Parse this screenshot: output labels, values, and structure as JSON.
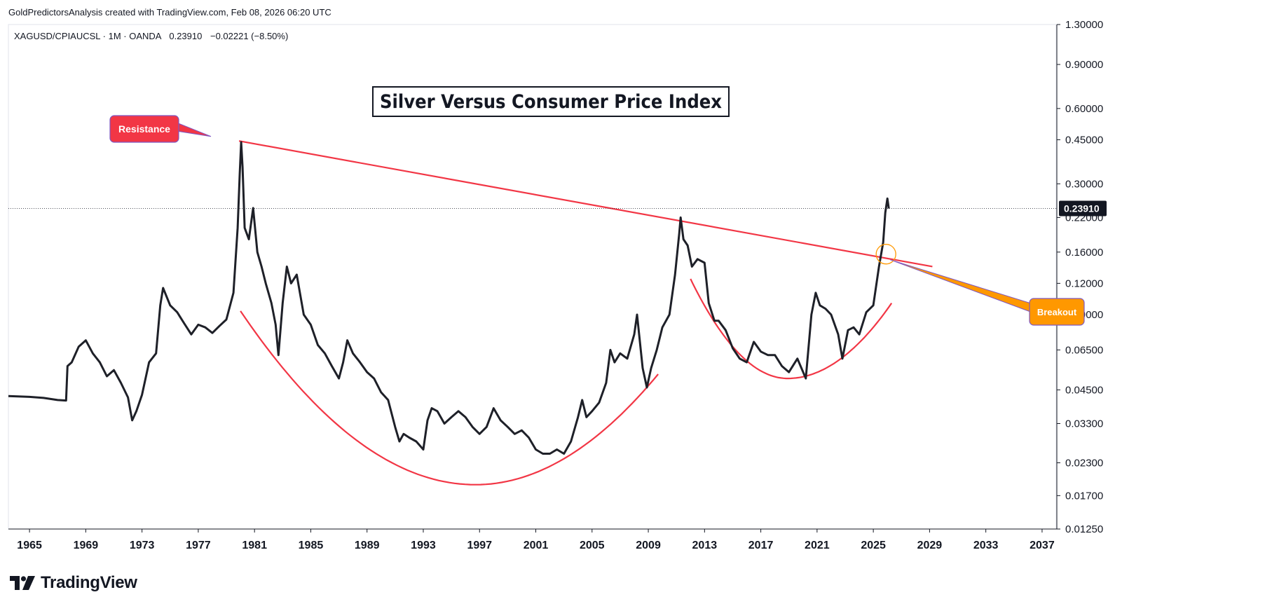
{
  "credit": "GoldPredictorsAnalysis created with TradingView.com, Feb 08, 2026 06:20 UTC",
  "logo": {
    "text": "TradingView",
    "icon": "tradingview-logo-icon"
  },
  "symbol_info": {
    "text": "XAGUSD/CPIAUCSL · 1M · OANDA",
    "last": "0.23910",
    "change": "−0.02221 (−8.50%)"
  },
  "colors": {
    "price": "#1e2028",
    "trend": "#f23645",
    "resistance": "#f23645",
    "breakout": "#ff9800",
    "axis": "#131722"
  },
  "chart_data": {
    "type": "line",
    "title": "Silver Versus Consumer Price Index",
    "y_scale": "log",
    "ylim": [
      0.0125,
      1.3
    ],
    "xlim": [
      1963.5,
      2038.0
    ],
    "y_ticks": [
      "1.30000",
      "0.90000",
      "0.60000",
      "0.45000",
      "0.30000",
      "0.22000",
      "0.16000",
      "0.12000",
      "0.09000",
      "0.06500",
      "0.04500",
      "0.03300",
      "0.02300",
      "0.01700",
      "0.01250"
    ],
    "x_ticks": [
      "1965",
      "1969",
      "1973",
      "1977",
      "1981",
      "1985",
      "1989",
      "1993",
      "1997",
      "2001",
      "2005",
      "2009",
      "2013",
      "2017",
      "2021",
      "2025",
      "2029",
      "2033",
      "2037"
    ],
    "last_value": "0.23910",
    "series": [
      {
        "values": [
          [
            1963.5,
            0.0425
          ],
          [
            1965,
            0.0422
          ],
          [
            1966,
            0.0418
          ],
          [
            1967,
            0.041
          ],
          [
            1967.6,
            0.0408
          ],
          [
            1967.7,
            0.056
          ],
          [
            1968,
            0.058
          ],
          [
            1968.5,
            0.067
          ],
          [
            1969,
            0.071
          ],
          [
            1969.5,
            0.063
          ],
          [
            1970,
            0.058
          ],
          [
            1970.5,
            0.051
          ],
          [
            1971,
            0.054
          ],
          [
            1971.5,
            0.048
          ],
          [
            1972,
            0.042
          ],
          [
            1972.3,
            0.034
          ],
          [
            1972.6,
            0.037
          ],
          [
            1973,
            0.043
          ],
          [
            1973.5,
            0.058
          ],
          [
            1974,
            0.063
          ],
          [
            1974.3,
            0.098
          ],
          [
            1974.5,
            0.115
          ],
          [
            1975,
            0.098
          ],
          [
            1975.5,
            0.092
          ],
          [
            1976,
            0.083
          ],
          [
            1976.5,
            0.075
          ],
          [
            1977,
            0.082
          ],
          [
            1977.5,
            0.08
          ],
          [
            1978,
            0.076
          ],
          [
            1978.5,
            0.081
          ],
          [
            1979,
            0.086
          ],
          [
            1979.5,
            0.11
          ],
          [
            1979.8,
            0.2
          ],
          [
            1979.95,
            0.33
          ],
          [
            1980.05,
            0.44
          ],
          [
            1980.15,
            0.35
          ],
          [
            1980.3,
            0.2
          ],
          [
            1980.6,
            0.18
          ],
          [
            1980.9,
            0.24
          ],
          [
            1981.2,
            0.16
          ],
          [
            1981.5,
            0.14
          ],
          [
            1981.8,
            0.12
          ],
          [
            1982.2,
            0.1
          ],
          [
            1982.5,
            0.082
          ],
          [
            1982.7,
            0.062
          ],
          [
            1983,
            0.1
          ],
          [
            1983.3,
            0.14
          ],
          [
            1983.6,
            0.12
          ],
          [
            1984,
            0.13
          ],
          [
            1984.5,
            0.09
          ],
          [
            1985,
            0.082
          ],
          [
            1985.5,
            0.068
          ],
          [
            1986,
            0.063
          ],
          [
            1986.5,
            0.056
          ],
          [
            1987,
            0.05
          ],
          [
            1987.3,
            0.058
          ],
          [
            1987.6,
            0.071
          ],
          [
            1988,
            0.063
          ],
          [
            1988.5,
            0.058
          ],
          [
            1989,
            0.053
          ],
          [
            1989.5,
            0.05
          ],
          [
            1990,
            0.044
          ],
          [
            1990.5,
            0.041
          ],
          [
            1991,
            0.032
          ],
          [
            1991.3,
            0.028
          ],
          [
            1991.6,
            0.03
          ],
          [
            1992,
            0.029
          ],
          [
            1992.5,
            0.028
          ],
          [
            1993,
            0.026
          ],
          [
            1993.3,
            0.034
          ],
          [
            1993.6,
            0.038
          ],
          [
            1994,
            0.037
          ],
          [
            1994.5,
            0.033
          ],
          [
            1995,
            0.035
          ],
          [
            1995.5,
            0.037
          ],
          [
            1996,
            0.035
          ],
          [
            1996.5,
            0.032
          ],
          [
            1997,
            0.03
          ],
          [
            1997.5,
            0.032
          ],
          [
            1998,
            0.038
          ],
          [
            1998.5,
            0.034
          ],
          [
            1999,
            0.032
          ],
          [
            1999.5,
            0.03
          ],
          [
            2000,
            0.031
          ],
          [
            2000.5,
            0.029
          ],
          [
            2001,
            0.026
          ],
          [
            2001.5,
            0.025
          ],
          [
            2002,
            0.025
          ],
          [
            2002.5,
            0.026
          ],
          [
            2003,
            0.025
          ],
          [
            2003.5,
            0.028
          ],
          [
            2004,
            0.035
          ],
          [
            2004.3,
            0.041
          ],
          [
            2004.6,
            0.035
          ],
          [
            2005,
            0.037
          ],
          [
            2005.5,
            0.04
          ],
          [
            2006,
            0.048
          ],
          [
            2006.3,
            0.065
          ],
          [
            2006.6,
            0.058
          ],
          [
            2007,
            0.063
          ],
          [
            2007.5,
            0.06
          ],
          [
            2008,
            0.075
          ],
          [
            2008.2,
            0.09
          ],
          [
            2008.6,
            0.055
          ],
          [
            2008.9,
            0.046
          ],
          [
            2009.2,
            0.055
          ],
          [
            2009.6,
            0.065
          ],
          [
            2010,
            0.08
          ],
          [
            2010.5,
            0.09
          ],
          [
            2010.9,
            0.13
          ],
          [
            2011.2,
            0.19
          ],
          [
            2011.3,
            0.22
          ],
          [
            2011.5,
            0.18
          ],
          [
            2011.8,
            0.17
          ],
          [
            2012.1,
            0.14
          ],
          [
            2012.5,
            0.15
          ],
          [
            2013,
            0.145
          ],
          [
            2013.3,
            0.1
          ],
          [
            2013.7,
            0.085
          ],
          [
            2014,
            0.085
          ],
          [
            2014.5,
            0.078
          ],
          [
            2015,
            0.066
          ],
          [
            2015.5,
            0.06
          ],
          [
            2016,
            0.058
          ],
          [
            2016.5,
            0.07
          ],
          [
            2017,
            0.064
          ],
          [
            2017.5,
            0.062
          ],
          [
            2018,
            0.062
          ],
          [
            2018.5,
            0.056
          ],
          [
            2019,
            0.053
          ],
          [
            2019.6,
            0.06
          ],
          [
            2020.2,
            0.05
          ],
          [
            2020.6,
            0.09
          ],
          [
            2020.9,
            0.11
          ],
          [
            2021.2,
            0.098
          ],
          [
            2021.6,
            0.095
          ],
          [
            2022,
            0.09
          ],
          [
            2022.5,
            0.075
          ],
          [
            2022.8,
            0.06
          ],
          [
            2023.2,
            0.078
          ],
          [
            2023.6,
            0.08
          ],
          [
            2024,
            0.075
          ],
          [
            2024.5,
            0.092
          ],
          [
            2025,
            0.098
          ],
          [
            2025.4,
            0.14
          ],
          [
            2025.7,
            0.175
          ],
          [
            2025.85,
            0.23
          ],
          [
            2026.0,
            0.262
          ],
          [
            2026.1,
            0.239
          ]
        ]
      }
    ],
    "trendlines": [
      {
        "name": "Resistance",
        "type": "line",
        "points": [
          [
            1979.9,
            0.445
          ],
          [
            2029.2,
            0.14
          ]
        ]
      },
      {
        "type": "cup",
        "from": 1980.0,
        "vertex": 1996.7,
        "to": 2009.7,
        "low": 0.0188,
        "left_y": 0.093,
        "right_y": 0.052
      },
      {
        "type": "cup",
        "from": 2012.0,
        "vertex": 2018.9,
        "to": 2026.3,
        "low": 0.05,
        "left_y": 0.125,
        "right_y": 0.1
      }
    ],
    "annotations": [
      {
        "text": "Resistance",
        "color": "#f23645",
        "anchor": [
          1975.5,
          0.48
        ]
      },
      {
        "text": "Breakout",
        "color": "#ff9800",
        "anchor": [
          2029.3,
          0.093
        ],
        "target": [
          2025.9,
          0.157
        ]
      }
    ]
  }
}
